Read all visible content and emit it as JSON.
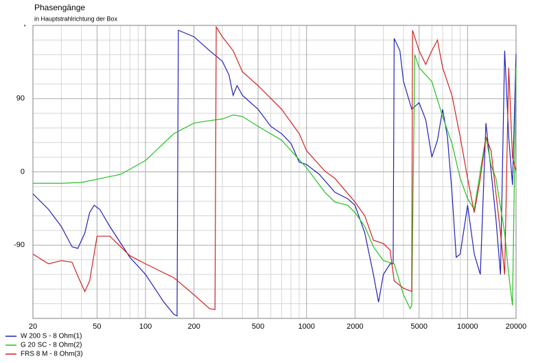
{
  "chart_data": {
    "type": "line",
    "title": "Phasengänge",
    "subtitle": "in Hauptstrahlrichtung der Box",
    "ylabel": "°",
    "log_x": true,
    "grid": true,
    "xlim": [
      20,
      20000
    ],
    "ylim": [
      -180,
      180
    ],
    "xticks": [
      20,
      50,
      100,
      200,
      500,
      1000,
      2000,
      5000,
      10000,
      20000
    ],
    "xgrid_minor": [
      30,
      40,
      60,
      70,
      80,
      90,
      300,
      400,
      600,
      700,
      800,
      900,
      3000,
      4000,
      6000,
      7000,
      8000,
      9000
    ],
    "yticks": [
      90,
      0,
      -90
    ],
    "ygrid_minor": [
      -162,
      -144,
      -126,
      -108,
      -72,
      -54,
      -36,
      -18,
      18,
      36,
      54,
      72,
      108,
      126,
      144,
      162
    ],
    "series": [
      {
        "name": "W 200 S - 8 Ohm(1)",
        "color": "#2020b8",
        "x": [
          20,
          25,
          30,
          35,
          38,
          42,
          45,
          48,
          52,
          60,
          80,
          100,
          130,
          150,
          157,
          160,
          200,
          250,
          300,
          330,
          350,
          370,
          400,
          500,
          600,
          700,
          800,
          900,
          1000,
          1200,
          1500,
          1800,
          2000,
          2300,
          2600,
          2800,
          3000,
          3300,
          3450,
          3500,
          3800,
          4000,
          4500,
          5000,
          5500,
          6000,
          6500,
          7000,
          7500,
          8000,
          8500,
          9000,
          10000,
          11000,
          12000,
          13000,
          14000,
          15000,
          16000,
          17000,
          18000,
          19000,
          20000
        ],
        "values": [
          -27,
          -46,
          -67,
          -92,
          -94,
          -75,
          -50,
          -41,
          -46,
          -67,
          -105,
          -126,
          -160,
          -175,
          -177,
          174,
          166,
          149,
          136,
          119,
          94,
          106,
          94,
          77,
          56,
          47,
          35,
          12,
          9,
          -3,
          -25,
          -33,
          -41,
          -75,
          -126,
          -160,
          -126,
          -113,
          -113,
          164,
          149,
          111,
          77,
          85,
          64,
          18,
          39,
          77,
          43,
          -25,
          -105,
          -101,
          -41,
          -101,
          -126,
          60,
          1,
          -58,
          -126,
          149,
          43,
          -16,
          145
        ]
      },
      {
        "name": "G 20 SC - 8 Ohm(2)",
        "color": "#20c020",
        "x": [
          20,
          30,
          40,
          50,
          70,
          100,
          150,
          200,
          250,
          300,
          350,
          400,
          500,
          700,
          1000,
          1300,
          1500,
          1800,
          2000,
          2300,
          2600,
          3000,
          3500,
          4000,
          4400,
          4500,
          4700,
          5000,
          6000,
          7000,
          8000,
          9000,
          10000,
          11000,
          12000,
          13000,
          14000,
          15000,
          17000,
          18000,
          19000,
          20000
        ],
        "values": [
          -14,
          -14,
          -13,
          -9,
          -3,
          14,
          47,
          60,
          63,
          65,
          70,
          68,
          56,
          39,
          5,
          -25,
          -37,
          -41,
          -50,
          -67,
          -92,
          -109,
          -113,
          -151,
          -168,
          -164,
          144,
          128,
          111,
          68,
          35,
          -8,
          -33,
          -46,
          1,
          43,
          8,
          -8,
          -75,
          -126,
          -164,
          128
        ]
      },
      {
        "name": "FRS 8 M - 8 Ohm(3)",
        "color": "#d02020",
        "x": [
          20,
          25,
          30,
          35,
          38,
          42,
          45,
          50,
          60,
          80,
          100,
          150,
          200,
          250,
          270,
          275,
          300,
          350,
          400,
          500,
          700,
          900,
          1000,
          1300,
          1500,
          2000,
          2300,
          2600,
          3000,
          3300,
          3500,
          4000,
          4500,
          4550,
          5000,
          5500,
          6000,
          6500,
          7000,
          8000,
          9000,
          10000,
          11000,
          12000,
          13000,
          14000,
          16000,
          17000,
          18000,
          19000,
          20000
        ],
        "values": [
          -101,
          -113,
          -109,
          -111,
          -128,
          -147,
          -134,
          -79,
          -79,
          -103,
          -113,
          -130,
          -151,
          -168,
          -169,
          178,
          166,
          149,
          123,
          106,
          77,
          47,
          26,
          1,
          -8,
          -37,
          -54,
          -84,
          -88,
          -96,
          -134,
          -143,
          -147,
          174,
          149,
          132,
          149,
          162,
          128,
          94,
          43,
          -8,
          -50,
          -8,
          43,
          26,
          -75,
          -126,
          128,
          18,
          1
        ]
      }
    ]
  }
}
